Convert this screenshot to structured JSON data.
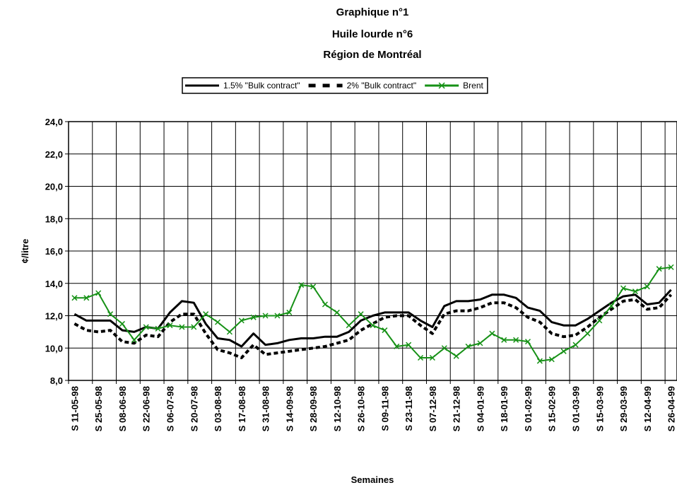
{
  "chart_data": {
    "type": "line",
    "title": "Graphique n°1",
    "subtitle": "Huile lourde n°6",
    "subtitle2": "Région de Montréal",
    "y_label": "¢/litre",
    "x_label": "Semaines",
    "legend": "top",
    "grid": true,
    "categories": [
      "S 11-05-98",
      null,
      "S 25-05-98",
      null,
      "S 08-06-98",
      null,
      "S 22-06-98",
      null,
      "S 06-07-98",
      null,
      "S 20-07-98",
      null,
      "S 03-08-98",
      null,
      "S 17-08-98",
      null,
      "S 31-08-98",
      null,
      "S 14-09-98",
      null,
      "S 28-09-98",
      null,
      "S 12-10-98",
      null,
      "S 26-10-98",
      null,
      "S 09-11-98",
      null,
      "S 23-11-98",
      null,
      "S 07-12-98",
      null,
      "S 21-12-98",
      null,
      "S 04-01-99",
      null,
      "S 18-01-99",
      null,
      "S 01-02-99",
      null,
      "S 15-02-99",
      null,
      "S 01-03-99",
      null,
      "S 15-03-99",
      null,
      "S 29-03-99",
      null,
      "S 12-04-99",
      null,
      "S 26-04-99"
    ],
    "ylim": [
      8,
      24
    ],
    "yticks": [
      {
        "value": 8,
        "label": "8,0"
      },
      {
        "value": 10,
        "label": "10,0"
      },
      {
        "value": 12,
        "label": "12,0"
      },
      {
        "value": 14,
        "label": "14,0"
      },
      {
        "value": 16,
        "label": "16,0"
      },
      {
        "value": 18,
        "label": "18,0"
      },
      {
        "value": 20,
        "label": "20,0"
      },
      {
        "value": 22,
        "label": "22,0"
      },
      {
        "value": 24,
        "label": "24,0"
      }
    ],
    "series": [
      {
        "name": "1.5% \"Bulk contract\"",
        "color": "#000000",
        "style": "solid",
        "values": [
          12.1,
          11.7,
          11.7,
          11.7,
          11.1,
          11.0,
          11.3,
          11.2,
          12.2,
          12.9,
          12.8,
          11.5,
          10.6,
          10.5,
          10.1,
          10.9,
          10.2,
          10.3,
          10.5,
          10.6,
          10.6,
          10.7,
          10.7,
          11.0,
          11.7,
          12.0,
          12.2,
          12.2,
          12.2,
          11.7,
          11.3,
          12.6,
          12.9,
          12.9,
          13.0,
          13.3,
          13.3,
          13.1,
          12.5,
          12.3,
          11.6,
          11.4,
          11.4,
          11.8,
          12.3,
          12.8,
          13.2,
          13.3,
          12.7,
          12.8,
          13.6
        ]
      },
      {
        "name": "2% \"Bulk contract\"",
        "color": "#000000",
        "style": "dashed",
        "values": [
          11.5,
          11.1,
          11.0,
          11.1,
          10.4,
          10.3,
          10.8,
          10.7,
          11.6,
          12.1,
          12.1,
          10.9,
          9.9,
          9.7,
          9.4,
          10.2,
          9.6,
          9.7,
          9.8,
          9.9,
          10.0,
          10.1,
          10.3,
          10.5,
          11.1,
          11.5,
          11.9,
          12.0,
          12.0,
          11.4,
          10.9,
          12.1,
          12.3,
          12.3,
          12.5,
          12.8,
          12.8,
          12.5,
          11.9,
          11.6,
          10.9,
          10.7,
          10.8,
          11.3,
          11.9,
          12.4,
          12.9,
          13.0,
          12.4,
          12.5,
          13.3
        ]
      },
      {
        "name": "Brent",
        "color": "#169116",
        "style": "marker",
        "values": [
          13.1,
          13.1,
          13.4,
          12.1,
          11.5,
          10.5,
          11.3,
          11.2,
          11.4,
          11.3,
          11.3,
          12.1,
          11.6,
          11.0,
          11.7,
          11.9,
          12.0,
          12.0,
          12.2,
          13.9,
          13.8,
          12.7,
          12.2,
          11.4,
          12.1,
          11.4,
          11.1,
          10.1,
          10.2,
          9.4,
          9.4,
          10.0,
          9.5,
          10.1,
          10.3,
          10.9,
          10.5,
          10.5,
          10.4,
          9.2,
          9.3,
          9.8,
          10.2,
          10.9,
          11.7,
          12.6,
          13.7,
          13.5,
          13.8,
          14.9,
          15.0
        ]
      }
    ]
  }
}
